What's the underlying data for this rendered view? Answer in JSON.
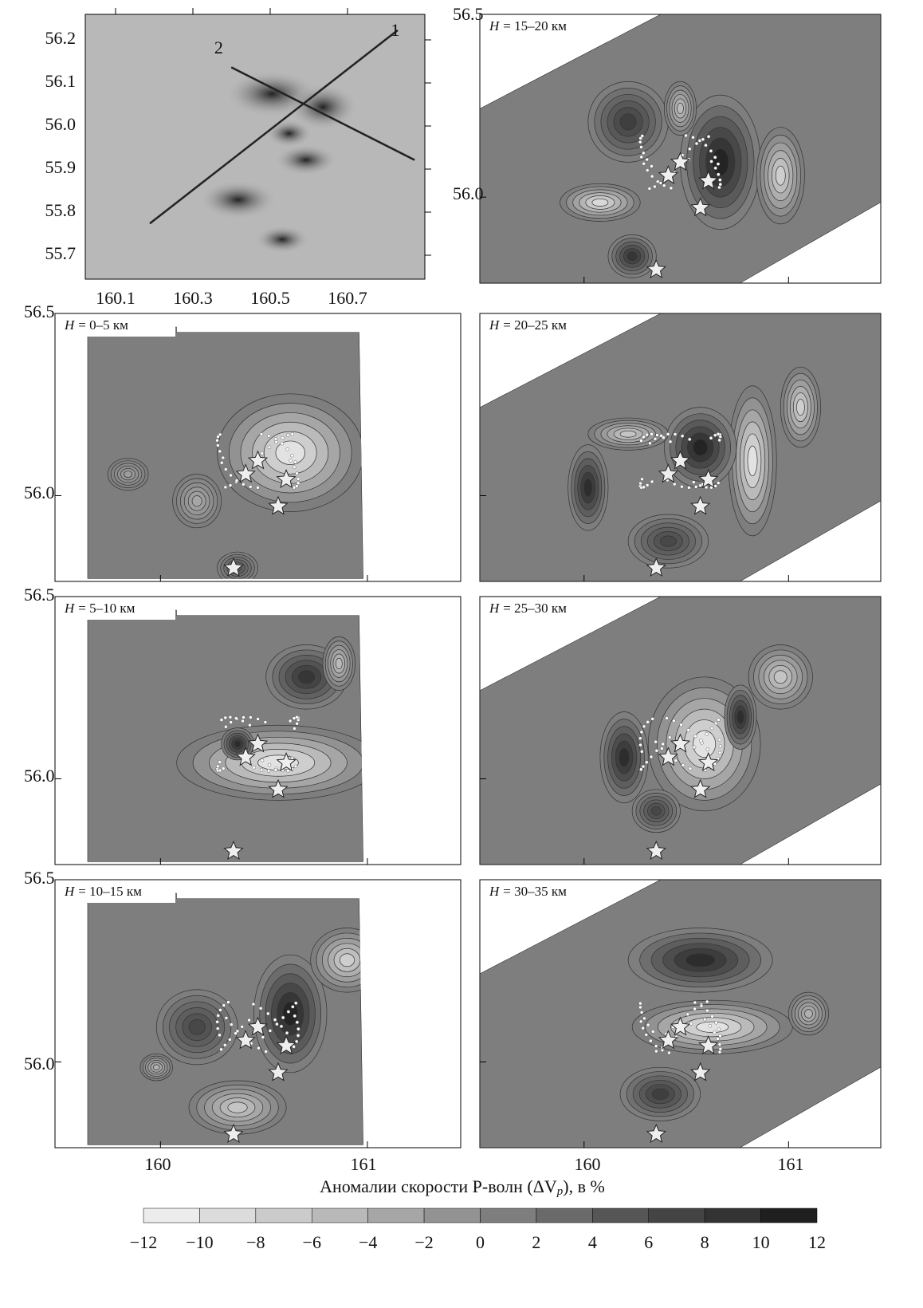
{
  "map": {
    "y_labels": [
      "56.2",
      "56.1",
      "56.0",
      "55.9",
      "55.8",
      "55.7"
    ],
    "x_labels": [
      "160.1",
      "160.3",
      "160.5",
      "160.7"
    ],
    "profiles": [
      "1",
      "2"
    ]
  },
  "axis_labels": {
    "lat_top": "56.5",
    "lat_mid": "56.0",
    "lon_left": "160",
    "lon_right": "161"
  },
  "panels": [
    {
      "var": "H",
      "text": "= 0–5 км"
    },
    {
      "var": "H",
      "text": "= 5–10 км"
    },
    {
      "var": "H",
      "text": "= 10–15 км"
    },
    {
      "var": "H",
      "text": "= 15–20 км"
    },
    {
      "var": "H",
      "text": "= 20–25 км"
    },
    {
      "var": "H",
      "text": "= 25–30 км"
    },
    {
      "var": "H",
      "text": "= 30–35 км"
    }
  ],
  "colorbar": {
    "title": "Аномалии скорости P-волн (ΔV",
    "title_sub": "p",
    "title_end": "), в %",
    "ticks": [
      {
        "value": -12,
        "label": "−12"
      },
      {
        "value": -10,
        "label": "−10"
      },
      {
        "value": -8,
        "label": "−8"
      },
      {
        "value": -6,
        "label": "−6"
      },
      {
        "value": -4,
        "label": "−4"
      },
      {
        "value": -2,
        "label": "−2"
      },
      0,
      2,
      4,
      6,
      8,
      10,
      12
    ],
    "colors": [
      "#ececec",
      "#dcdcdc",
      "#cbcbcb",
      "#b9b9b9",
      "#a6a6a6",
      "#939393",
      "#7e7e7e",
      "#6a6a6a",
      "#565656",
      "#444444",
      "#333333",
      "#1f1f1f"
    ]
  }
}
